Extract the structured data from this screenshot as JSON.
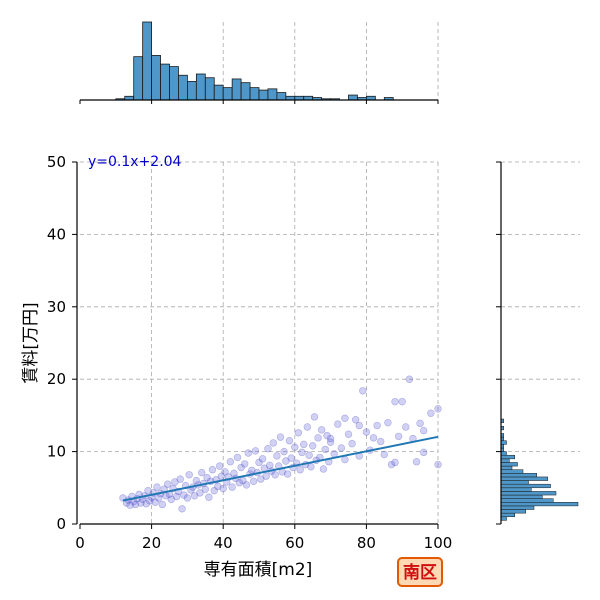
{
  "chart_data": {
    "type": "scatter",
    "xlabel": "専有面積[m2]",
    "ylabel": "賃料[万円]",
    "xlim": [
      0,
      100
    ],
    "ylim": [
      0,
      50
    ],
    "xticks": [
      "0",
      "20",
      "40",
      "60",
      "80",
      "100"
    ],
    "yticks": [
      "0",
      "10",
      "20",
      "30",
      "40",
      "50"
    ],
    "grid": true,
    "annotation": "y=0.1x+2.04",
    "badge": "南区",
    "regression": {
      "slope": 0.1,
      "intercept": 2.04,
      "x_range": [
        12,
        100
      ]
    },
    "points": [
      [
        12,
        3.6
      ],
      [
        13,
        2.9
      ],
      [
        13.5,
        3.3
      ],
      [
        14,
        2.6
      ],
      [
        14.5,
        3.8
      ],
      [
        15,
        3.1
      ],
      [
        15.5,
        2.7
      ],
      [
        16,
        3.5
      ],
      [
        16.5,
        4.1
      ],
      [
        17,
        2.9
      ],
      [
        17.5,
        3.4
      ],
      [
        18,
        3.9
      ],
      [
        18.5,
        2.8
      ],
      [
        19,
        4.6
      ],
      [
        19.5,
        3.2
      ],
      [
        20,
        3.7
      ],
      [
        20.5,
        4.3
      ],
      [
        21,
        3.0
      ],
      [
        21.5,
        5.1
      ],
      [
        22,
        3.6
      ],
      [
        22.5,
        4.2
      ],
      [
        23,
        2.7
      ],
      [
        23.5,
        4.8
      ],
      [
        24,
        3.9
      ],
      [
        24.5,
        5.5
      ],
      [
        25,
        4.1
      ],
      [
        25.5,
        3.4
      ],
      [
        26,
        4.9
      ],
      [
        26.5,
        5.8
      ],
      [
        27,
        3.8
      ],
      [
        27.5,
        4.5
      ],
      [
        28,
        6.2
      ],
      [
        28.5,
        2.1
      ],
      [
        29,
        4.0
      ],
      [
        29.5,
        5.3
      ],
      [
        30,
        3.6
      ],
      [
        30.5,
        6.8
      ],
      [
        31,
        4.7
      ],
      [
        31.5,
        5.1
      ],
      [
        32,
        3.9
      ],
      [
        32.5,
        6.0
      ],
      [
        33,
        5.4
      ],
      [
        33.5,
        4.3
      ],
      [
        34,
        7.1
      ],
      [
        34.5,
        5.6
      ],
      [
        35,
        4.8
      ],
      [
        35.5,
        6.4
      ],
      [
        36,
        3.7
      ],
      [
        36.5,
        5.9
      ],
      [
        37,
        7.5
      ],
      [
        37.5,
        4.6
      ],
      [
        38,
        6.1
      ],
      [
        38.5,
        5.2
      ],
      [
        39,
        8.0
      ],
      [
        39.5,
        6.6
      ],
      [
        40,
        4.9
      ],
      [
        40.5,
        7.2
      ],
      [
        41,
        5.8
      ],
      [
        41.5,
        6.5
      ],
      [
        42,
        8.6
      ],
      [
        42.5,
        5.1
      ],
      [
        43,
        7.0
      ],
      [
        43.5,
        6.3
      ],
      [
        44,
        9.2
      ],
      [
        44.5,
        5.7
      ],
      [
        45,
        7.8
      ],
      [
        45.5,
        6.0
      ],
      [
        46,
        8.3
      ],
      [
        46.5,
        5.4
      ],
      [
        47,
        9.8
      ],
      [
        47.5,
        6.9
      ],
      [
        48,
        7.4
      ],
      [
        48.5,
        5.9
      ],
      [
        49,
        10.1
      ],
      [
        49.5,
        7.1
      ],
      [
        50,
        8.5
      ],
      [
        50.5,
        6.2
      ],
      [
        51,
        9.0
      ],
      [
        51.5,
        7.7
      ],
      [
        52,
        6.6
      ],
      [
        52.5,
        10.4
      ],
      [
        53,
        8.1
      ],
      [
        53.5,
        7.3
      ],
      [
        54,
        11.2
      ],
      [
        54.5,
        6.8
      ],
      [
        55,
        9.4
      ],
      [
        55.5,
        8.0
      ],
      [
        56,
        12.0
      ],
      [
        56.5,
        7.2
      ],
      [
        57,
        10.0
      ],
      [
        57.5,
        8.7
      ],
      [
        58,
        6.9
      ],
      [
        58.5,
        11.5
      ],
      [
        59,
        9.1
      ],
      [
        59.5,
        7.8
      ],
      [
        60,
        10.6
      ],
      [
        60.5,
        8.4
      ],
      [
        61,
        12.6
      ],
      [
        61.5,
        7.5
      ],
      [
        62,
        9.9
      ],
      [
        62.5,
        11.0
      ],
      [
        63,
        8.2
      ],
      [
        63.5,
        13.4
      ],
      [
        64,
        9.5
      ],
      [
        64.5,
        7.9
      ],
      [
        65,
        10.8
      ],
      [
        65.5,
        14.8
      ],
      [
        66,
        8.8
      ],
      [
        66.5,
        11.9
      ],
      [
        67,
        9.2
      ],
      [
        67.5,
        13.0
      ],
      [
        68,
        7.6
      ],
      [
        68.5,
        10.3
      ],
      [
        69,
        12.2
      ],
      [
        69.5,
        8.6
      ],
      [
        70,
        11.3
      ],
      [
        71,
        9.7
      ],
      [
        72,
        13.8
      ],
      [
        73,
        10.5
      ],
      [
        74,
        8.9
      ],
      [
        75,
        12.4
      ],
      [
        76,
        11.1
      ],
      [
        77,
        14.4
      ],
      [
        78,
        9.4
      ],
      [
        79,
        18.4
      ],
      [
        80,
        12.7
      ],
      [
        81,
        10.2
      ],
      [
        83,
        13.6
      ],
      [
        84,
        11.4
      ],
      [
        85,
        9.6
      ],
      [
        86,
        14.0
      ],
      [
        87,
        8.2
      ],
      [
        88,
        16.9
      ],
      [
        89,
        12.1
      ],
      [
        90,
        16.9
      ],
      [
        91,
        13.4
      ],
      [
        92,
        20.0
      ],
      [
        93,
        11.8
      ],
      [
        94,
        8.6
      ],
      [
        95,
        13.9
      ],
      [
        96,
        12.9
      ],
      [
        98,
        15.3
      ],
      [
        100,
        15.9
      ],
      [
        100,
        8.2
      ],
      [
        96,
        9.9
      ],
      [
        88,
        8.5
      ],
      [
        82,
        11.9
      ],
      [
        78,
        13.6
      ],
      [
        74,
        14.6
      ],
      [
        70,
        11.8
      ]
    ],
    "top_histogram": {
      "bin_edges": [
        0,
        2.5,
        5,
        7.5,
        10,
        12.5,
        15,
        17.5,
        20,
        22.5,
        25,
        27.5,
        30,
        32.5,
        35,
        37.5,
        40,
        42.5,
        45,
        47.5,
        50,
        52.5,
        55,
        57.5,
        60,
        62.5,
        65,
        67.5,
        70,
        72.5,
        75,
        77.5,
        80,
        82.5,
        85,
        87.5,
        90,
        92.5,
        95,
        97.5,
        100
      ],
      "counts": [
        0,
        0,
        0,
        0,
        1,
        3,
        35,
        63,
        36,
        29,
        27,
        20,
        15,
        21,
        18,
        12,
        10,
        17,
        14,
        10,
        8,
        9,
        6,
        3,
        3,
        3,
        2,
        1,
        1,
        0,
        4,
        2,
        3,
        0,
        2,
        0,
        0,
        0,
        0,
        0
      ]
    },
    "right_histogram": {
      "bin_edges": [
        0,
        0.5,
        1,
        1.5,
        2,
        2.5,
        3,
        3.5,
        4,
        4.5,
        5,
        5.5,
        6,
        6.5,
        7,
        7.5,
        8,
        8.5,
        9,
        9.5,
        10,
        10.5,
        11,
        11.5,
        12,
        12.5,
        13,
        13.5,
        14,
        14.5,
        15
      ],
      "counts": [
        0,
        2,
        5,
        9,
        12,
        28,
        19,
        15,
        20,
        11,
        18,
        10,
        17,
        13,
        8,
        4,
        6,
        3,
        5,
        2,
        1,
        1,
        2,
        1,
        1,
        0,
        1,
        0,
        1,
        0
      ]
    }
  }
}
